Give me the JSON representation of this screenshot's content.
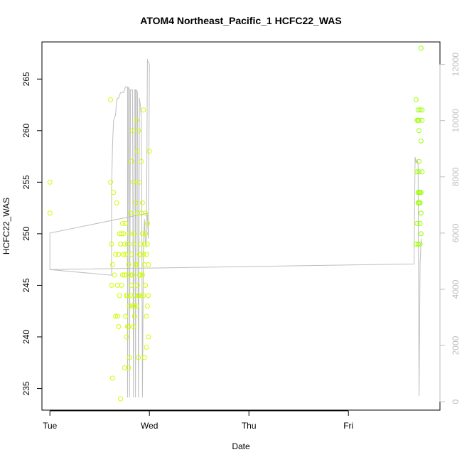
{
  "chart_data": {
    "type": "scatter",
    "title": "ATOM4 Northeast_Pacific_1 HCFC22_WAS",
    "xlabel": "Date",
    "ylabel": "HCFC22_WAS",
    "x_ticks": [
      "Tue",
      "Wed",
      "Thu",
      "Fri"
    ],
    "y_ticks": [
      "235",
      "240",
      "245",
      "250",
      "255",
      "260",
      "265"
    ],
    "y2_ticks": [
      "0",
      "2000",
      "4000",
      "6000",
      "8000",
      "10000",
      "12000"
    ],
    "xlim": [
      -0.08,
      3.92
    ],
    "ylim": [
      232.9,
      268.6
    ],
    "y2lim": [
      -300,
      12800
    ],
    "grid": false,
    "colors": {
      "points_day1": "#ccff00",
      "points_day4": "#99ff00",
      "altitude_line": "#bebebe",
      "axis": "#000000",
      "secondary_axis": "#bebebe"
    },
    "series": [
      {
        "kind": "points",
        "x": [
          0.0,
          0.0,
          0.61,
          0.61,
          0.62,
          0.62,
          0.63,
          0.63,
          0.64,
          0.65,
          0.66,
          0.66,
          0.67,
          0.68,
          0.68,
          0.69,
          0.69,
          0.7,
          0.7,
          0.71,
          0.71,
          0.72,
          0.72,
          0.73,
          0.73,
          0.74,
          0.74,
          0.75,
          0.75,
          0.75,
          0.76,
          0.76,
          0.76,
          0.77,
          0.77,
          0.77,
          0.78,
          0.78,
          0.78,
          0.79,
          0.79,
          0.79,
          0.8,
          0.8,
          0.8,
          0.81,
          0.81,
          0.81,
          0.82,
          0.82,
          0.82,
          0.83,
          0.83,
          0.83,
          0.84,
          0.84,
          0.84,
          0.85,
          0.85,
          0.85,
          0.86,
          0.86,
          0.86,
          0.87,
          0.87,
          0.87,
          0.88,
          0.88,
          0.88,
          0.89,
          0.89,
          0.89,
          0.9,
          0.9,
          0.9,
          0.91,
          0.91,
          0.91,
          0.92,
          0.92,
          0.92,
          0.93,
          0.93,
          0.93,
          0.94,
          0.94,
          0.94,
          0.95,
          0.95,
          0.95,
          0.96,
          0.96,
          0.96,
          0.97,
          0.97,
          0.97,
          0.98,
          0.98,
          0.98,
          0.99,
          0.99,
          0.99,
          1.0
        ],
        "y": [
          255,
          252,
          263,
          255,
          249,
          245,
          247,
          236,
          254,
          246,
          242,
          248,
          253,
          242,
          245,
          241,
          248,
          250,
          244,
          249,
          234,
          245,
          250,
          246,
          251,
          248,
          250,
          246,
          249,
          237,
          242,
          248,
          251,
          244,
          240,
          246,
          244,
          249,
          241,
          237,
          247,
          241,
          243,
          250,
          238,
          244,
          246,
          252,
          245,
          248,
          257,
          243,
          260,
          246,
          241,
          255,
          249,
          242,
          250,
          243,
          244,
          247,
          253,
          247,
          243,
          261,
          245,
          252,
          258,
          260,
          244,
          238,
          255,
          246,
          248,
          249,
          246,
          248,
          244,
          252,
          257,
          246,
          253,
          250,
          248,
          244,
          262,
          238,
          249,
          247,
          245,
          250,
          252,
          248,
          242,
          239,
          243,
          249,
          251,
          247,
          244,
          240,
          258
        ],
        "color_key": "points_day1"
      },
      {
        "kind": "points",
        "x": [
          3.68,
          3.68,
          3.69,
          3.69,
          3.69,
          3.7,
          3.7,
          3.7,
          3.7,
          3.7,
          3.71,
          3.71,
          3.71,
          3.71,
          3.71,
          3.71,
          3.72,
          3.72,
          3.72,
          3.72,
          3.72,
          3.73,
          3.73,
          3.73,
          3.73,
          3.73,
          3.74,
          3.74,
          3.74
        ],
        "y": [
          249,
          263,
          261,
          256,
          251,
          261,
          262,
          249,
          254,
          253,
          256,
          257,
          261,
          260,
          254,
          253,
          262,
          254,
          253,
          251,
          249,
          252,
          254,
          259,
          268,
          250,
          256,
          261,
          262
        ],
        "color_key": "points_day4"
      },
      {
        "kind": "line",
        "axis": "secondary",
        "x": [
          0.0,
          0.0,
          0.62,
          0.62,
          0.63,
          0.64,
          0.65,
          0.66,
          0.67,
          0.68,
          0.69,
          0.7,
          0.71,
          0.72,
          0.73,
          0.74,
          0.75,
          0.76,
          0.77,
          0.78,
          0.78,
          0.79,
          0.8,
          0.8,
          0.81,
          0.82,
          0.83,
          0.84,
          0.85,
          0.86,
          0.86,
          0.87,
          0.88,
          0.89,
          0.9,
          0.91,
          0.92,
          0.93,
          0.94,
          0.95,
          0.96,
          0.97,
          0.98,
          0.98,
          0.99,
          1.0,
          0.99,
          0.98,
          0.98,
          0.97,
          0.0,
          0.0,
          3.66,
          3.67,
          3.68,
          3.69,
          3.7,
          3.71,
          3.72,
          3.73,
          3.74
        ],
        "y": [
          6000,
          4700,
          4500,
          7600,
          9200,
          10000,
          10100,
          10200,
          10700,
          10800,
          10800,
          10900,
          11000,
          11000,
          11000,
          11000,
          11100,
          11200,
          11200,
          11200,
          150,
          11200,
          11100,
          150,
          11100,
          11100,
          11100,
          150,
          11100,
          11100,
          150,
          11100,
          11000,
          150,
          10800,
          10500,
          10000,
          150,
          5500,
          6500,
          5600,
          5500,
          12200,
          12100,
          12100,
          12000,
          5800,
          6600,
          6700,
          6700,
          6000,
          4700,
          4900,
          8700,
          8500,
          8600,
          8500,
          200,
          4900,
          5700,
          5800
        ],
        "color_key": "altitude_line"
      }
    ]
  }
}
